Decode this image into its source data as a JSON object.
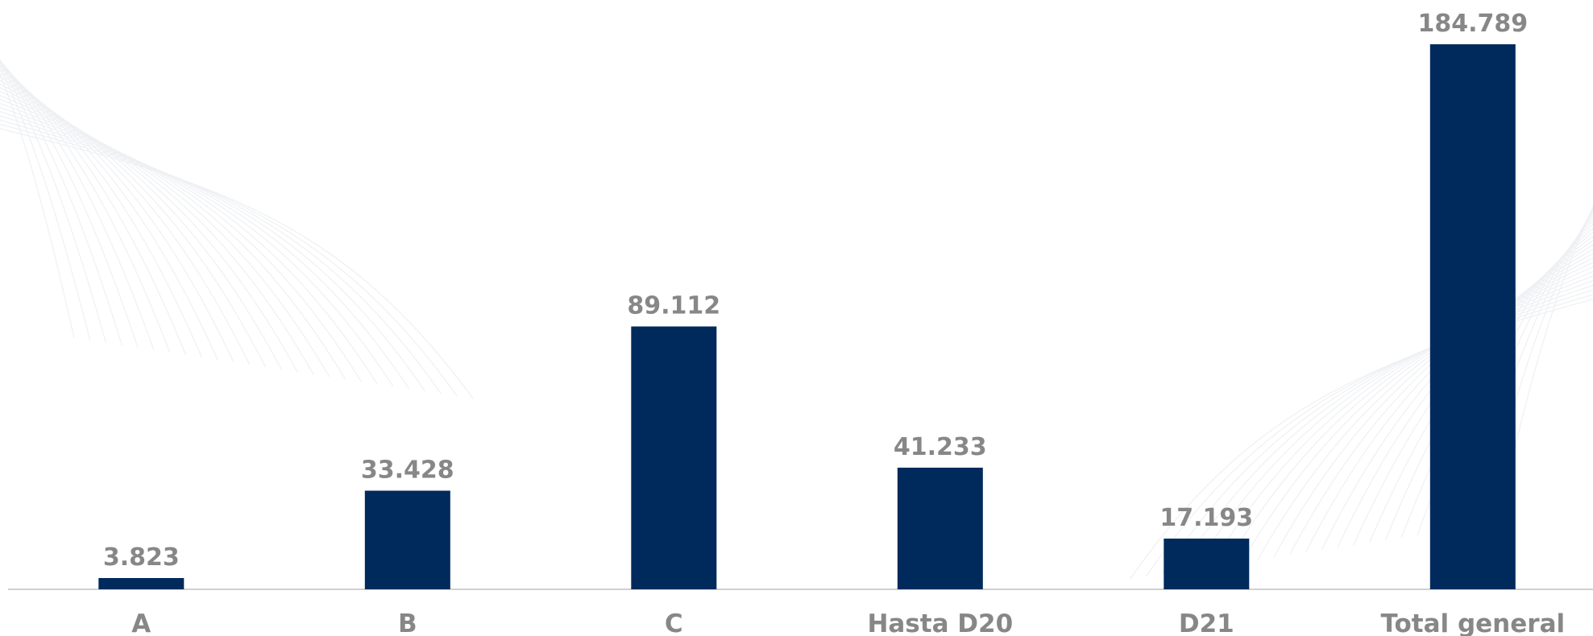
{
  "chart_data": {
    "type": "bar",
    "title": "",
    "xlabel": "",
    "ylabel": "",
    "categories": [
      "A",
      "B",
      "C",
      "Hasta D20",
      "D21",
      "Total general"
    ],
    "values": [
      3823,
      33428,
      89112,
      41233,
      17193,
      184789
    ],
    "value_labels": [
      "3.823",
      "33.428",
      "89.112",
      "41.233",
      "17.193",
      "184.789"
    ],
    "ylim": [
      0,
      184789
    ],
    "grid": false,
    "legend": "none",
    "bar_color": "#002a5c",
    "label_color": "#878787",
    "axis_color": "#d0d0d0"
  }
}
